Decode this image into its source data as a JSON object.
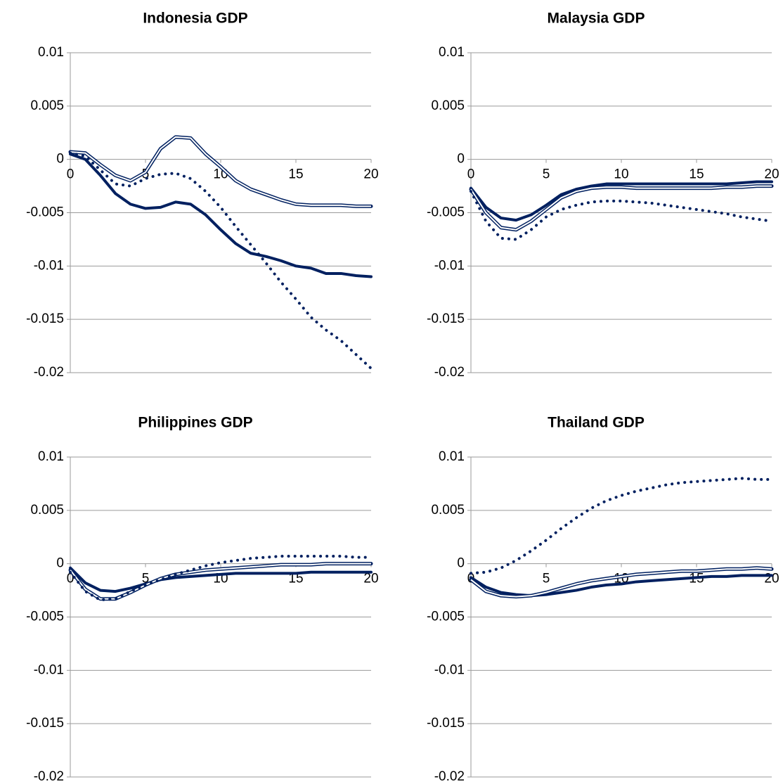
{
  "chart_data": [
    {
      "type": "line",
      "title": "Indonesia GDP",
      "x": [
        0,
        1,
        2,
        3,
        4,
        5,
        6,
        7,
        8,
        9,
        10,
        11,
        12,
        13,
        14,
        15,
        16,
        17,
        18,
        19,
        20
      ],
      "xlim": [
        0,
        20
      ],
      "xticks": [
        0,
        5,
        10,
        15,
        20
      ],
      "ylim": [
        -0.02,
        0.01
      ],
      "yticks": [
        -0.02,
        -0.015,
        -0.01,
        -0.005,
        0,
        0.005,
        0.01
      ],
      "grid": true,
      "series": [
        {
          "color": "#002060",
          "line_style": "thick",
          "values": [
            0.0005,
            0.0,
            -0.0015,
            -0.0032,
            -0.0042,
            -0.0046,
            -0.0045,
            -0.004,
            -0.0042,
            -0.0052,
            -0.0066,
            -0.0079,
            -0.0088,
            -0.0091,
            -0.0095,
            -0.01,
            -0.0102,
            -0.0107,
            -0.0107,
            -0.0109,
            -0.011
          ]
        },
        {
          "color": "#002060",
          "line_style": "double",
          "values": [
            0.0007,
            0.0006,
            -0.0005,
            -0.0015,
            -0.002,
            -0.0012,
            0.001,
            0.0021,
            0.002,
            0.0005,
            -0.0007,
            -0.002,
            -0.0028,
            -0.0033,
            -0.0038,
            -0.0042,
            -0.0043,
            -0.0043,
            -0.0043,
            -0.0044,
            -0.0044
          ]
        },
        {
          "color": "#002060",
          "line_style": "dotted",
          "values": [
            0.0006,
            0.0003,
            -0.001,
            -0.0023,
            -0.0025,
            -0.0018,
            -0.0014,
            -0.0013,
            -0.0018,
            -0.003,
            -0.0045,
            -0.0063,
            -0.008,
            -0.0097,
            -0.0115,
            -0.0131,
            -0.0148,
            -0.016,
            -0.017,
            -0.0183,
            -0.0196
          ]
        }
      ]
    },
    {
      "type": "line",
      "title": "Malaysia GDP",
      "x": [
        0,
        1,
        2,
        3,
        4,
        5,
        6,
        7,
        8,
        9,
        10,
        11,
        12,
        13,
        14,
        15,
        16,
        17,
        18,
        19,
        20
      ],
      "xlim": [
        0,
        20
      ],
      "xticks": [
        0,
        5,
        10,
        15,
        20
      ],
      "ylim": [
        -0.02,
        0.01
      ],
      "yticks": [
        -0.02,
        -0.015,
        -0.01,
        -0.005,
        0,
        0.005,
        0.01
      ],
      "grid": true,
      "series": [
        {
          "color": "#002060",
          "line_style": "thick",
          "values": [
            -0.0027,
            -0.0045,
            -0.0055,
            -0.0057,
            -0.0052,
            -0.0043,
            -0.0033,
            -0.0028,
            -0.0025,
            -0.0023,
            -0.0023,
            -0.0023,
            -0.0023,
            -0.0023,
            -0.0023,
            -0.0023,
            -0.0023,
            -0.0023,
            -0.0022,
            -0.0021,
            -0.0021
          ]
        },
        {
          "color": "#002060",
          "line_style": "double",
          "values": [
            -0.0028,
            -0.005,
            -0.0064,
            -0.0066,
            -0.0058,
            -0.0047,
            -0.0036,
            -0.003,
            -0.0027,
            -0.0026,
            -0.0026,
            -0.0027,
            -0.0027,
            -0.0027,
            -0.0027,
            -0.0027,
            -0.0027,
            -0.0026,
            -0.0026,
            -0.0025,
            -0.0025
          ]
        },
        {
          "color": "#002060",
          "line_style": "dotted",
          "values": [
            -0.003,
            -0.0058,
            -0.0074,
            -0.0075,
            -0.0066,
            -0.0054,
            -0.0047,
            -0.0043,
            -0.004,
            -0.0039,
            -0.0039,
            -0.004,
            -0.0041,
            -0.0043,
            -0.0045,
            -0.0047,
            -0.0049,
            -0.0051,
            -0.0054,
            -0.0056,
            -0.0058
          ]
        }
      ]
    },
    {
      "type": "line",
      "title": "Philippines GDP",
      "x": [
        0,
        1,
        2,
        3,
        4,
        5,
        6,
        7,
        8,
        9,
        10,
        11,
        12,
        13,
        14,
        15,
        16,
        17,
        18,
        19,
        20
      ],
      "xlim": [
        0,
        20
      ],
      "xticks": [
        0,
        5,
        10,
        15,
        20
      ],
      "ylim": [
        -0.02,
        0.01
      ],
      "yticks": [
        -0.02,
        -0.015,
        -0.01,
        -0.005,
        0,
        0.005,
        0.01
      ],
      "grid": true,
      "series": [
        {
          "color": "#002060",
          "line_style": "thick",
          "values": [
            -0.0004,
            -0.0018,
            -0.0025,
            -0.0026,
            -0.0023,
            -0.0019,
            -0.0015,
            -0.0013,
            -0.0012,
            -0.0011,
            -0.001,
            -0.0009,
            -0.0009,
            -0.0009,
            -0.0009,
            -0.0009,
            -0.0008,
            -0.0008,
            -0.0008,
            -0.0008,
            -0.0008
          ]
        },
        {
          "color": "#002060",
          "line_style": "double",
          "values": [
            -0.0006,
            -0.0024,
            -0.0033,
            -0.0033,
            -0.0027,
            -0.002,
            -0.0014,
            -0.001,
            -0.0008,
            -0.0006,
            -0.0005,
            -0.0004,
            -0.0003,
            -0.0002,
            -0.0001,
            -0.0001,
            -0.0001,
            0.0,
            0.0,
            0.0,
            0.0
          ]
        },
        {
          "color": "#002060",
          "line_style": "dotted",
          "values": [
            -0.0008,
            -0.0026,
            -0.0034,
            -0.0033,
            -0.0026,
            -0.002,
            -0.0015,
            -0.001,
            -0.0006,
            -0.0002,
            0.0001,
            0.0003,
            0.0005,
            0.0006,
            0.0007,
            0.0007,
            0.0007,
            0.0007,
            0.0007,
            0.0006,
            0.0006
          ]
        }
      ]
    },
    {
      "type": "line",
      "title": "Thailand GDP",
      "x": [
        0,
        1,
        2,
        3,
        4,
        5,
        6,
        7,
        8,
        9,
        10,
        11,
        12,
        13,
        14,
        15,
        16,
        17,
        18,
        19,
        20
      ],
      "xlim": [
        0,
        20
      ],
      "xticks": [
        0,
        5,
        10,
        15,
        20
      ],
      "ylim": [
        -0.02,
        0.01
      ],
      "yticks": [
        -0.02,
        -0.015,
        -0.01,
        -0.005,
        0,
        0.005,
        0.01
      ],
      "grid": true,
      "series": [
        {
          "color": "#002060",
          "line_style": "thick",
          "values": [
            -0.0013,
            -0.0022,
            -0.0027,
            -0.0029,
            -0.003,
            -0.0029,
            -0.0027,
            -0.0025,
            -0.0022,
            -0.002,
            -0.0019,
            -0.0017,
            -0.0016,
            -0.0015,
            -0.0014,
            -0.0013,
            -0.0012,
            -0.0012,
            -0.0011,
            -0.0011,
            -0.0011
          ]
        },
        {
          "color": "#002060",
          "line_style": "double",
          "values": [
            -0.0015,
            -0.0026,
            -0.003,
            -0.0031,
            -0.003,
            -0.0027,
            -0.0023,
            -0.0019,
            -0.0016,
            -0.0014,
            -0.0012,
            -0.001,
            -0.0009,
            -0.0008,
            -0.0007,
            -0.0007,
            -0.0006,
            -0.0005,
            -0.0005,
            -0.0004,
            -0.0005
          ]
        },
        {
          "color": "#002060",
          "line_style": "dotted",
          "values": [
            -0.0009,
            -0.0008,
            -0.0004,
            0.0003,
            0.0012,
            0.0022,
            0.0033,
            0.0043,
            0.0052,
            0.0059,
            0.0064,
            0.0068,
            0.0071,
            0.0074,
            0.0076,
            0.0077,
            0.0078,
            0.0079,
            0.008,
            0.0079,
            0.0079
          ]
        }
      ]
    }
  ]
}
